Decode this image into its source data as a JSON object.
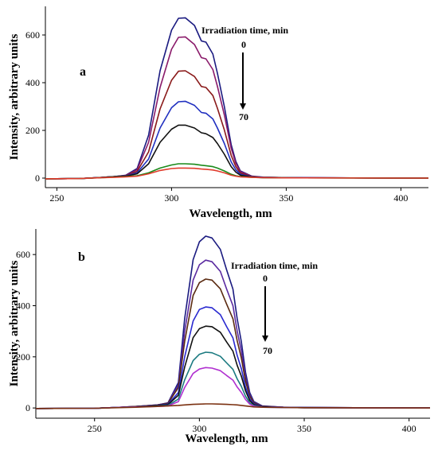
{
  "chart_data": [
    {
      "type": "line",
      "panel_label": "a",
      "xlabel": "Wavelength, nm",
      "ylabel": "Intensity, arbitrary units",
      "xlim": [
        245,
        412
      ],
      "ylim": [
        -40,
        720
      ],
      "xticks": [
        250,
        300,
        350,
        400
      ],
      "yticks": [
        0,
        200,
        400,
        600
      ],
      "annotation": {
        "title": "Irradiation time, min",
        "start": "0",
        "end": "70",
        "arrow": "down"
      },
      "series": [
        {
          "color": "#1a1a80",
          "x": [
            245,
            260,
            270,
            275,
            280,
            285,
            290,
            295,
            300,
            303,
            306,
            310,
            313,
            315,
            318,
            320,
            323,
            326,
            328,
            330,
            335,
            340,
            350,
            400,
            412
          ],
          "y": [
            -3,
            -2,
            3,
            6,
            12,
            40,
            180,
            450,
            620,
            670,
            672,
            640,
            575,
            570,
            520,
            440,
            300,
            140,
            70,
            30,
            8,
            4,
            2,
            0,
            0
          ]
        },
        {
          "color": "#8a1a6a",
          "x": [
            245,
            260,
            270,
            275,
            280,
            285,
            290,
            295,
            300,
            303,
            306,
            310,
            313,
            315,
            318,
            320,
            323,
            326,
            328,
            330,
            335,
            340,
            350,
            400,
            412
          ],
          "y": [
            -3,
            -2,
            3,
            6,
            11,
            35,
            150,
            380,
            540,
            590,
            592,
            560,
            505,
            500,
            455,
            385,
            265,
            125,
            62,
            27,
            7,
            3,
            2,
            0,
            0
          ]
        },
        {
          "color": "#8a1a1a",
          "x": [
            245,
            260,
            270,
            275,
            280,
            285,
            290,
            295,
            300,
            303,
            306,
            310,
            313,
            315,
            318,
            320,
            323,
            326,
            328,
            330,
            335,
            340,
            350,
            400,
            412
          ],
          "y": [
            -3,
            -2,
            3,
            6,
            10,
            28,
            110,
            290,
            410,
            448,
            450,
            426,
            384,
            380,
            346,
            293,
            202,
            95,
            48,
            21,
            6,
            3,
            2,
            0,
            0
          ]
        },
        {
          "color": "#2030c0",
          "x": [
            245,
            260,
            270,
            275,
            280,
            285,
            290,
            295,
            300,
            303,
            306,
            310,
            313,
            315,
            318,
            320,
            323,
            326,
            328,
            330,
            335,
            340,
            350,
            400,
            412
          ],
          "y": [
            -3,
            -2,
            3,
            6,
            9,
            22,
            80,
            210,
            295,
            320,
            322,
            305,
            275,
            272,
            248,
            210,
            145,
            68,
            35,
            16,
            5,
            3,
            2,
            0,
            0
          ]
        },
        {
          "color": "#111111",
          "x": [
            245,
            260,
            270,
            275,
            280,
            285,
            290,
            295,
            300,
            303,
            306,
            310,
            313,
            315,
            318,
            320,
            323,
            326,
            328,
            330,
            335,
            340,
            350,
            400,
            412
          ],
          "y": [
            -3,
            -2,
            3,
            6,
            8,
            18,
            60,
            150,
            205,
            222,
            222,
            210,
            190,
            186,
            170,
            145,
            100,
            48,
            25,
            12,
            4,
            2,
            1,
            0,
            0
          ]
        },
        {
          "color": "#1a8a1a",
          "x": [
            245,
            260,
            270,
            275,
            280,
            285,
            290,
            295,
            300,
            303,
            306,
            310,
            313,
            315,
            318,
            320,
            323,
            326,
            328,
            330,
            335,
            340,
            350,
            400,
            412
          ],
          "y": [
            -3,
            -2,
            2,
            4,
            6,
            10,
            22,
            42,
            55,
            60,
            60,
            58,
            54,
            52,
            48,
            42,
            30,
            16,
            10,
            6,
            3,
            2,
            1,
            0,
            0
          ]
        },
        {
          "color": "#e03a2a",
          "x": [
            245,
            260,
            270,
            275,
            280,
            285,
            290,
            295,
            300,
            303,
            306,
            310,
            313,
            315,
            318,
            320,
            323,
            326,
            328,
            330,
            335,
            340,
            350,
            400,
            412
          ],
          "y": [
            -3,
            -2,
            2,
            3,
            5,
            8,
            18,
            32,
            40,
            42,
            42,
            41,
            38,
            37,
            34,
            30,
            22,
            12,
            8,
            5,
            3,
            2,
            1,
            0,
            0
          ]
        }
      ]
    },
    {
      "type": "line",
      "panel_label": "b",
      "xlabel": "Wavelength, nm",
      "ylabel": "Intensity, arbitrary units",
      "xlim": [
        222,
        410
      ],
      "ylim": [
        -40,
        700
      ],
      "xticks": [
        250,
        300,
        350,
        400
      ],
      "yticks": [
        0,
        200,
        400,
        600
      ],
      "annotation": {
        "title": "Irradiation time, min",
        "start": "0",
        "end": "70",
        "arrow": "down"
      },
      "series": [
        {
          "color": "#1a1a80",
          "x": [
            222,
            250,
            260,
            270,
            280,
            285,
            290,
            293,
            297,
            300,
            303,
            306,
            310,
            313,
            316,
            318,
            320,
            322,
            324,
            326,
            330,
            340,
            350,
            400,
            410
          ],
          "y": [
            -2,
            -1,
            2,
            6,
            12,
            20,
            100,
            350,
            580,
            650,
            672,
            665,
            620,
            540,
            465,
            350,
            260,
            140,
            60,
            25,
            8,
            3,
            2,
            0,
            0
          ]
        },
        {
          "color": "#5a2aa0",
          "x": [
            222,
            250,
            260,
            270,
            280,
            285,
            290,
            293,
            297,
            300,
            303,
            306,
            310,
            313,
            316,
            318,
            320,
            322,
            324,
            326,
            330,
            340,
            350,
            400,
            410
          ],
          "y": [
            -2,
            -1,
            2,
            6,
            12,
            19,
            90,
            300,
            500,
            560,
            578,
            572,
            534,
            465,
            400,
            301,
            224,
            120,
            52,
            22,
            7,
            3,
            2,
            0,
            0
          ]
        },
        {
          "color": "#5a2a10",
          "x": [
            222,
            250,
            260,
            270,
            280,
            285,
            290,
            293,
            297,
            300,
            303,
            306,
            310,
            313,
            316,
            318,
            320,
            322,
            324,
            326,
            330,
            340,
            350,
            400,
            410
          ],
          "y": [
            -2,
            -1,
            2,
            6,
            11,
            18,
            80,
            260,
            440,
            490,
            504,
            500,
            466,
            406,
            349,
            263,
            196,
            105,
            46,
            20,
            6,
            3,
            2,
            0,
            0
          ]
        },
        {
          "color": "#2a2ad0",
          "x": [
            222,
            250,
            260,
            270,
            280,
            285,
            290,
            293,
            297,
            300,
            303,
            306,
            310,
            313,
            316,
            318,
            320,
            322,
            324,
            326,
            330,
            340,
            350,
            400,
            410
          ],
          "y": [
            -2,
            -1,
            2,
            5,
            10,
            15,
            60,
            200,
            340,
            385,
            395,
            392,
            365,
            318,
            274,
            206,
            154,
            82,
            36,
            16,
            5,
            3,
            2,
            0,
            0
          ]
        },
        {
          "color": "#111111",
          "x": [
            222,
            250,
            260,
            270,
            280,
            285,
            290,
            293,
            297,
            300,
            303,
            306,
            310,
            313,
            316,
            318,
            320,
            322,
            324,
            326,
            330,
            340,
            350,
            400,
            410
          ],
          "y": [
            -2,
            -1,
            2,
            5,
            9,
            13,
            50,
            160,
            275,
            310,
            320,
            318,
            296,
            258,
            222,
            167,
            125,
            67,
            29,
            13,
            4,
            2,
            1,
            0,
            0
          ]
        },
        {
          "color": "#1a7a80",
          "x": [
            222,
            250,
            260,
            270,
            280,
            285,
            290,
            293,
            297,
            300,
            303,
            306,
            310,
            313,
            316,
            318,
            320,
            322,
            324,
            326,
            330,
            340,
            350,
            400,
            410
          ],
          "y": [
            -2,
            -1,
            2,
            4,
            7,
            10,
            35,
            110,
            185,
            210,
            218,
            216,
            202,
            176,
            151,
            114,
            85,
            46,
            20,
            9,
            3,
            2,
            1,
            0,
            0
          ]
        },
        {
          "color": "#b030d0",
          "x": [
            222,
            250,
            260,
            270,
            280,
            285,
            290,
            293,
            297,
            300,
            303,
            306,
            310,
            313,
            316,
            318,
            320,
            322,
            324,
            326,
            330,
            340,
            350,
            400,
            410
          ],
          "y": [
            -2,
            -1,
            2,
            4,
            6,
            8,
            25,
            80,
            135,
            152,
            158,
            156,
            146,
            127,
            109,
            82,
            61,
            33,
            15,
            7,
            3,
            2,
            1,
            0,
            0
          ]
        },
        {
          "color": "#7a3010",
          "x": [
            222,
            250,
            260,
            270,
            280,
            285,
            290,
            293,
            297,
            300,
            303,
            306,
            310,
            313,
            316,
            318,
            320,
            322,
            324,
            326,
            330,
            340,
            350,
            400,
            410
          ],
          "y": [
            -2,
            -1,
            1,
            3,
            6,
            8,
            10,
            12,
            14,
            15,
            16,
            16,
            15,
            14,
            13,
            12,
            10,
            8,
            6,
            4,
            3,
            2,
            1,
            0,
            0
          ]
        }
      ]
    }
  ]
}
